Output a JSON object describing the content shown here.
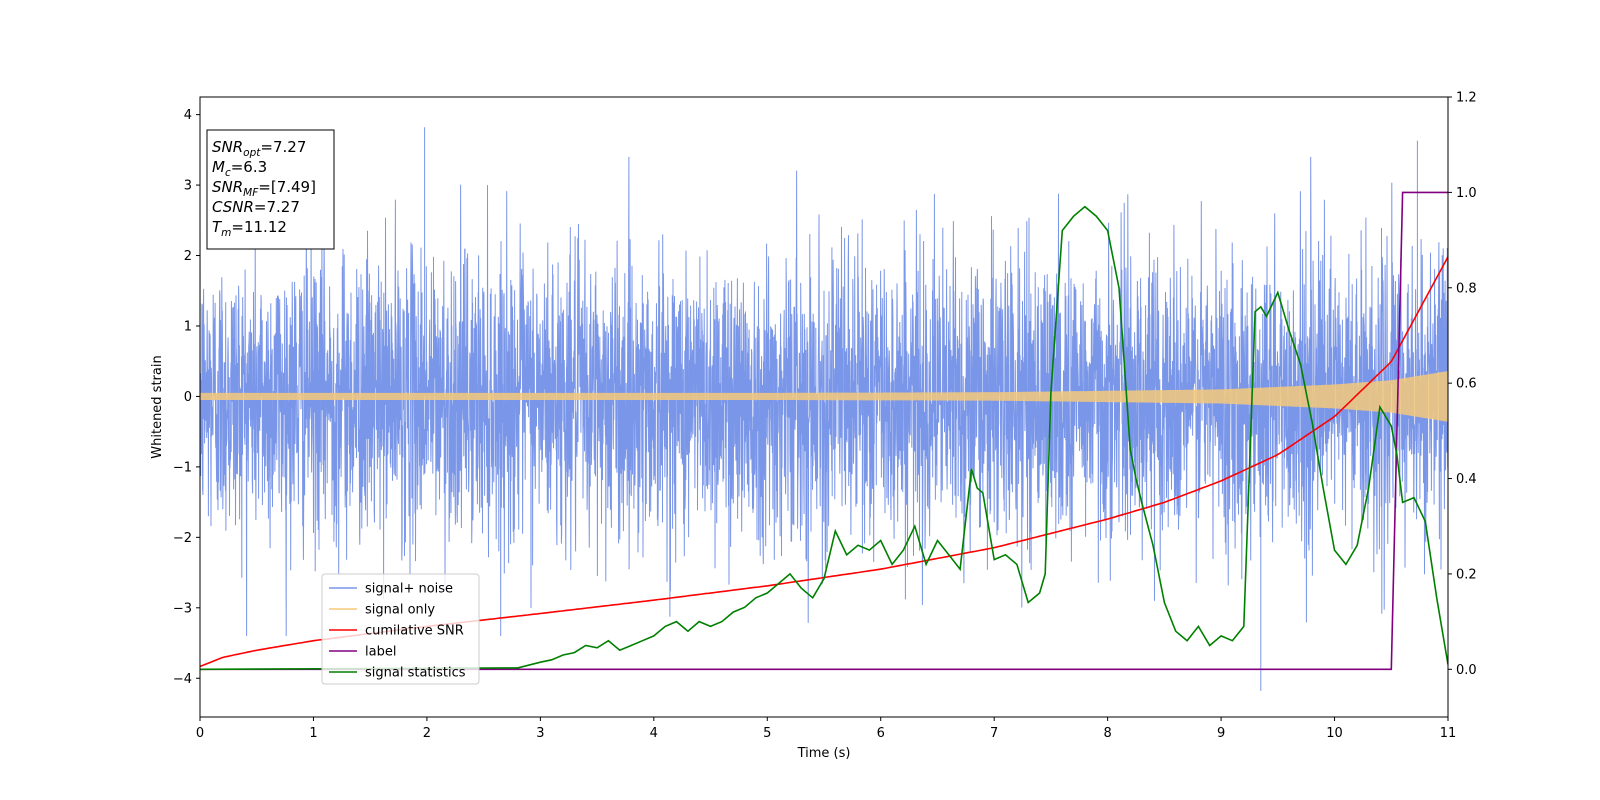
{
  "chart_data": {
    "type": "line",
    "title": "",
    "xlabel": "Time (s)",
    "ylabel": "Whitened strain",
    "xlim": [
      0,
      11
    ],
    "ylim": [
      -4.55,
      4.25
    ],
    "y2lim": [
      -0.1,
      1.2
    ],
    "x_ticks": [
      "0",
      "1",
      "2",
      "3",
      "4",
      "5",
      "6",
      "7",
      "8",
      "9",
      "10",
      "11"
    ],
    "y_ticks": [
      "−4",
      "−3",
      "−2",
      "−1",
      "0",
      "1",
      "2",
      "3",
      "4"
    ],
    "y2_ticks": [
      "0.0",
      "0.2",
      "0.4",
      "0.6",
      "0.8",
      "1.0",
      "1.2"
    ],
    "grid": false,
    "legend_position": "lower-left",
    "info_box": {
      "position": "top-left",
      "lines": [
        {
          "base": "SNR",
          "sub": "opt",
          "value": "=7.27"
        },
        {
          "base": "M",
          "sub": "c",
          "value": "=6.3"
        },
        {
          "base": "SNR",
          "sub": "MF",
          "value": "=[7.49]"
        },
        {
          "base": "CSNR",
          "sub": "",
          "value": "=7.27"
        },
        {
          "base": "T",
          "sub": "m",
          "value": "=11.12"
        }
      ]
    },
    "series": [
      {
        "name": "signal+ noise",
        "color": "#7a96e8",
        "axis": "left",
        "description_values": {
          "noise_sigma": 1.0,
          "extremes": [
            [
              1.98,
              3.82
            ],
            [
              9.35,
              -4.18
            ],
            [
              10.73,
              3.63
            ]
          ]
        }
      },
      {
        "name": "signal only",
        "color": "#f5c97a",
        "axis": "left",
        "envelope": {
          "x": [
            0,
            5,
            7,
            8,
            9,
            10,
            10.5,
            11
          ],
          "amp": [
            0.05,
            0.05,
            0.06,
            0.08,
            0.1,
            0.17,
            0.23,
            0.36
          ]
        }
      },
      {
        "name": "cumilative SNR",
        "color": "#ff0000",
        "axis": "right",
        "x": [
          0,
          0.2,
          0.5,
          1,
          2,
          3,
          4,
          5,
          6,
          7,
          8,
          8.5,
          9,
          9.5,
          10,
          10.5,
          11
        ],
        "values": [
          0.006,
          0.025,
          0.04,
          0.06,
          0.09,
          0.117,
          0.145,
          0.175,
          0.21,
          0.255,
          0.315,
          0.35,
          0.395,
          0.45,
          0.53,
          0.645,
          0.865
        ]
      },
      {
        "name": "label",
        "color": "#800080",
        "axis": "right",
        "x": [
          0,
          10.5,
          10.6,
          11
        ],
        "values": [
          0,
          0,
          1,
          1
        ]
      },
      {
        "name": "signal statistics",
        "color": "#008000",
        "axis": "right",
        "x": [
          0,
          2.8,
          3.0,
          3.1,
          3.2,
          3.3,
          3.4,
          3.5,
          3.6,
          3.7,
          3.8,
          3.9,
          4.0,
          4.1,
          4.2,
          4.3,
          4.4,
          4.5,
          4.6,
          4.7,
          4.8,
          4.9,
          5.0,
          5.1,
          5.2,
          5.3,
          5.4,
          5.5,
          5.6,
          5.7,
          5.8,
          5.9,
          6.0,
          6.1,
          6.2,
          6.3,
          6.4,
          6.5,
          6.6,
          6.7,
          6.8,
          6.85,
          6.9,
          6.95,
          7.0,
          7.1,
          7.2,
          7.3,
          7.4,
          7.45,
          7.5,
          7.6,
          7.7,
          7.8,
          7.9,
          8.0,
          8.1,
          8.2,
          8.25,
          8.3,
          8.4,
          8.5,
          8.6,
          8.7,
          8.8,
          8.9,
          9.0,
          9.1,
          9.2,
          9.3,
          9.35,
          9.4,
          9.5,
          9.6,
          9.7,
          9.8,
          9.9,
          10.0,
          10.1,
          10.2,
          10.3,
          10.4,
          10.5,
          10.55,
          10.6,
          10.7,
          10.8,
          10.9,
          11.0
        ],
        "values": [
          0.0,
          0.003,
          0.015,
          0.02,
          0.03,
          0.035,
          0.05,
          0.045,
          0.06,
          0.04,
          0.05,
          0.06,
          0.07,
          0.09,
          0.1,
          0.08,
          0.1,
          0.09,
          0.1,
          0.12,
          0.13,
          0.15,
          0.16,
          0.18,
          0.2,
          0.17,
          0.15,
          0.19,
          0.29,
          0.24,
          0.26,
          0.25,
          0.27,
          0.22,
          0.25,
          0.3,
          0.22,
          0.27,
          0.24,
          0.21,
          0.42,
          0.38,
          0.37,
          0.3,
          0.23,
          0.24,
          0.22,
          0.14,
          0.16,
          0.2,
          0.58,
          0.92,
          0.95,
          0.97,
          0.95,
          0.92,
          0.8,
          0.46,
          0.4,
          0.35,
          0.26,
          0.14,
          0.08,
          0.06,
          0.09,
          0.05,
          0.07,
          0.06,
          0.09,
          0.75,
          0.76,
          0.74,
          0.79,
          0.71,
          0.64,
          0.52,
          0.38,
          0.25,
          0.22,
          0.26,
          0.38,
          0.55,
          0.51,
          0.45,
          0.35,
          0.36,
          0.31,
          0.15,
          0.01
        ]
      }
    ]
  }
}
